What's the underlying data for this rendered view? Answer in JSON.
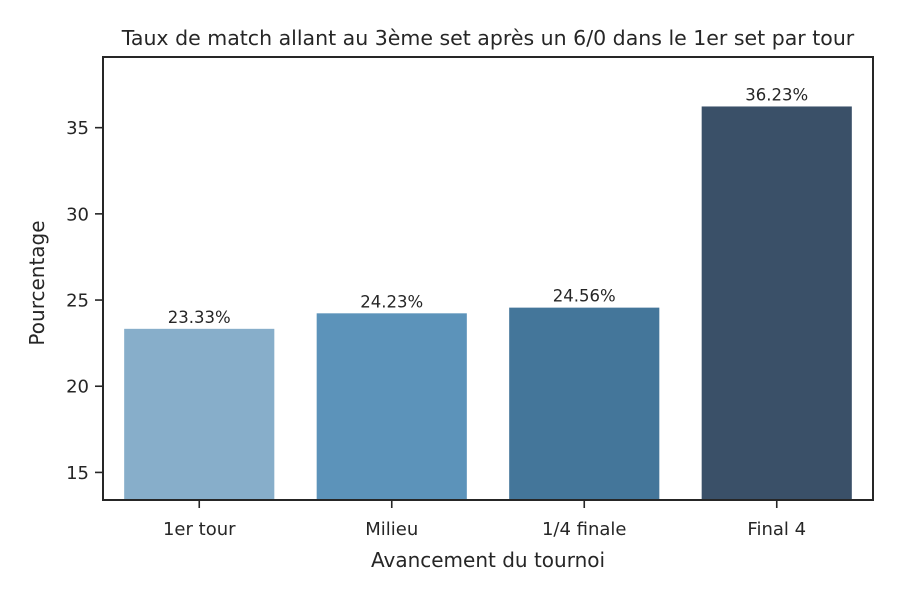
{
  "chart_data": {
    "type": "bar",
    "title": "Taux de match allant au 3ème set après un 6/0 dans le 1er set par tour",
    "xlabel": "Avancement du tournoi",
    "ylabel": "Pourcentage",
    "categories": [
      "1er tour",
      "Milieu",
      "1/4 finale",
      "Final 4"
    ],
    "values": [
      23.33,
      24.23,
      24.56,
      36.23
    ],
    "value_labels": [
      "23.33%",
      "24.23%",
      "24.56%",
      "36.23%"
    ],
    "ylim": [
      13.4,
      39.1
    ],
    "yticks": [
      15,
      20,
      25,
      30,
      35
    ],
    "ytick_labels": [
      "15",
      "20",
      "25",
      "30",
      "35"
    ],
    "grid": false,
    "legend": "none",
    "bar_colors": [
      "#87AECA",
      "#5C93BA",
      "#44769A",
      "#3A5068"
    ],
    "axis_color": "#262626"
  }
}
